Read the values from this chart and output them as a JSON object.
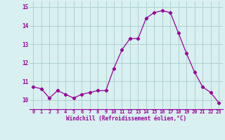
{
  "x": [
    0,
    1,
    2,
    3,
    4,
    5,
    6,
    7,
    8,
    9,
    10,
    11,
    12,
    13,
    14,
    15,
    16,
    17,
    18,
    19,
    20,
    21,
    22,
    23
  ],
  "y": [
    10.7,
    10.6,
    10.1,
    10.5,
    10.3,
    10.1,
    10.3,
    10.4,
    10.5,
    10.5,
    11.7,
    12.7,
    13.3,
    13.3,
    14.4,
    14.7,
    14.8,
    14.7,
    13.6,
    12.5,
    11.5,
    10.7,
    10.4,
    9.85
  ],
  "line_color": "#990099",
  "marker": "D",
  "marker_size": 2.2,
  "bg_color": "#d8f0f0",
  "grid_color": "#aacccc",
  "xlabel": "Windchill (Refroidissement éolien,°C)",
  "tick_color": "#990099",
  "xlim": [
    -0.5,
    23.5
  ],
  "ylim": [
    9.5,
    15.3
  ],
  "yticks": [
    10,
    11,
    12,
    13,
    14,
    15
  ],
  "xticks": [
    0,
    1,
    2,
    3,
    4,
    5,
    6,
    7,
    8,
    9,
    10,
    11,
    12,
    13,
    14,
    15,
    16,
    17,
    18,
    19,
    20,
    21,
    22,
    23
  ]
}
